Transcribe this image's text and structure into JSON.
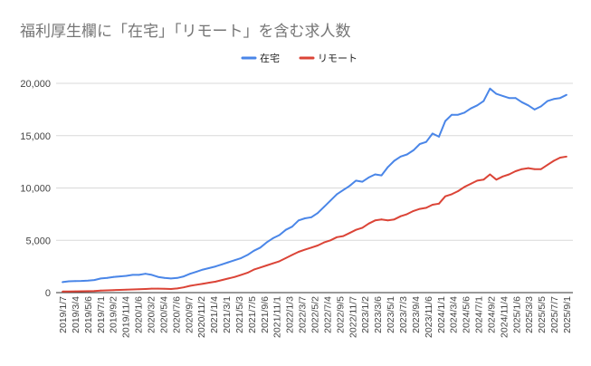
{
  "chart_data": {
    "type": "line",
    "title": "福利厚生欄に「在宅」「リモート」を含む求人数",
    "legend_position": "top",
    "grid": true,
    "ylim": [
      0,
      20000
    ],
    "y_ticks": [
      "0",
      "5,000",
      "10,000",
      "15,000",
      "20,000"
    ],
    "y_tick_values": [
      0,
      5000,
      10000,
      15000,
      20000
    ],
    "x_tick_labels": [
      "2019/1/7",
      "2019/3/4",
      "2019/5/6",
      "2019/7/1",
      "2019/9/2",
      "2019/11/4",
      "2020/1/6",
      "2020/3/2",
      "2020/5/4",
      "2020/7/6",
      "2020/9/7",
      "2020/11/2",
      "2021/1/4",
      "2021/3/1",
      "2021/5/3",
      "2021/7/5",
      "2021/9/6",
      "2021/11/1",
      "2022/1/3",
      "2022/3/7",
      "2022/5/2",
      "2022/7/4",
      "2022/9/5",
      "2022/11/7",
      "2023/1/2",
      "2023/3/6",
      "2023/5/1",
      "2023/7/3",
      "2023/9/4",
      "2023/11/6",
      "2024/1/1",
      "2024/3/4",
      "2024/5/6",
      "2024/7/1",
      "2024/9/2",
      "2024/11/4",
      "2025/1/6",
      "2025/3/3",
      "2025/5/5",
      "2025/7/7",
      "2025/9/1"
    ],
    "series": [
      {
        "name": "在宅",
        "color": "#4a86e8",
        "values": [
          1000,
          1080,
          1100,
          1120,
          1150,
          1200,
          1350,
          1400,
          1500,
          1550,
          1600,
          1700,
          1700,
          1800,
          1700,
          1500,
          1400,
          1350,
          1400,
          1550,
          1800,
          2000,
          2200,
          2350,
          2500,
          2700,
          2900,
          3100,
          3300,
          3600,
          4000,
          4300,
          4800,
          5200,
          5500,
          6000,
          6300,
          6900,
          7100,
          7200,
          7600,
          8200,
          8800,
          9400,
          9800,
          10200,
          10700,
          10600,
          11000,
          11300,
          11200,
          12000,
          12600,
          13000,
          13200,
          13600,
          14200,
          14400,
          15200,
          14900,
          16400,
          17000,
          17000,
          17200,
          17600,
          17900,
          18300,
          19500,
          19000,
          18800,
          18600,
          18600,
          18200,
          17900,
          17500,
          17800,
          18300,
          18500,
          18600,
          18900
        ]
      },
      {
        "name": "リモート",
        "color": "#db4437",
        "values": [
          100,
          110,
          120,
          130,
          140,
          160,
          200,
          220,
          240,
          260,
          280,
          300,
          320,
          350,
          380,
          380,
          370,
          350,
          400,
          500,
          650,
          750,
          850,
          950,
          1050,
          1200,
          1350,
          1500,
          1700,
          1900,
          2200,
          2400,
          2600,
          2800,
          3000,
          3300,
          3600,
          3900,
          4100,
          4300,
          4500,
          4800,
          5000,
          5300,
          5400,
          5700,
          6000,
          6200,
          6600,
          6900,
          7000,
          6900,
          7000,
          7300,
          7500,
          7800,
          8000,
          8100,
          8400,
          8500,
          9200,
          9400,
          9700,
          10100,
          10400,
          10700,
          10800,
          11300,
          10800,
          11100,
          11300,
          11600,
          11800,
          11900,
          11800,
          11800,
          12200,
          12600,
          12900,
          13000
        ]
      }
    ]
  }
}
